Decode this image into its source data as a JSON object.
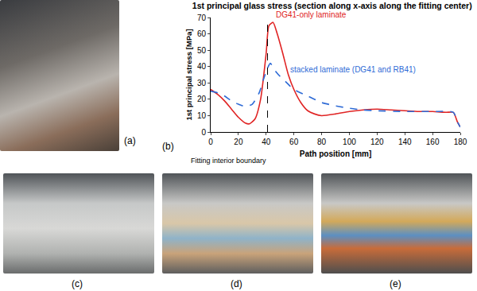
{
  "chart_data": {
    "type": "line",
    "title": "1st principal glass stress (section along x-axis along the fitting center)",
    "xlabel": "Path position [mm]",
    "ylabel": "1st principal stress [MPa]",
    "xlim": [
      0,
      180
    ],
    "xticks": [
      0,
      20,
      40,
      60,
      80,
      100,
      120,
      140,
      160,
      180
    ],
    "ylim": [
      0,
      70
    ],
    "yticks": [
      0,
      10,
      20,
      30,
      40,
      50,
      60,
      70
    ],
    "grid": false,
    "series": [
      {
        "name": "DG41-only laminate",
        "color": "#e02424",
        "line_style": "solid",
        "x": [
          0,
          5,
          10,
          15,
          20,
          25,
          28,
          32,
          36,
          40,
          42,
          45,
          48,
          52,
          56,
          60,
          65,
          70,
          75,
          80,
          90,
          100,
          110,
          120,
          130,
          140,
          150,
          160,
          170,
          175,
          178,
          180
        ],
        "values": [
          26,
          23,
          19,
          14,
          9,
          5.5,
          5,
          8,
          20,
          48,
          65,
          67,
          60,
          48,
          35,
          26,
          18,
          13,
          11,
          10,
          11,
          12.5,
          13.5,
          14,
          13.5,
          13,
          12.5,
          12.5,
          12,
          12,
          6,
          3
        ]
      },
      {
        "name": "stacked laminate (DG41 and RB41)",
        "color": "#2f6bd6",
        "line_style": "dashed",
        "x": [
          0,
          5,
          10,
          15,
          20,
          25,
          30,
          35,
          38,
          41,
          43,
          46,
          50,
          55,
          60,
          70,
          80,
          90,
          100,
          110,
          120,
          140,
          160,
          175,
          178,
          180
        ],
        "values": [
          25,
          24,
          22,
          19,
          17,
          15.5,
          17,
          24,
          32,
          39,
          42,
          38,
          34,
          30,
          26,
          22,
          18,
          16,
          14.5,
          13.5,
          13,
          12.5,
          12.5,
          12,
          6,
          3
        ]
      }
    ],
    "annotations": [
      {
        "text": "Fitting interior boundary",
        "x": 41
      },
      {
        "text": "(b)"
      }
    ]
  },
  "panels": [
    {
      "label": "(a)"
    },
    {
      "label": "(c)"
    },
    {
      "label": "(d)"
    },
    {
      "label": "(e)"
    }
  ]
}
